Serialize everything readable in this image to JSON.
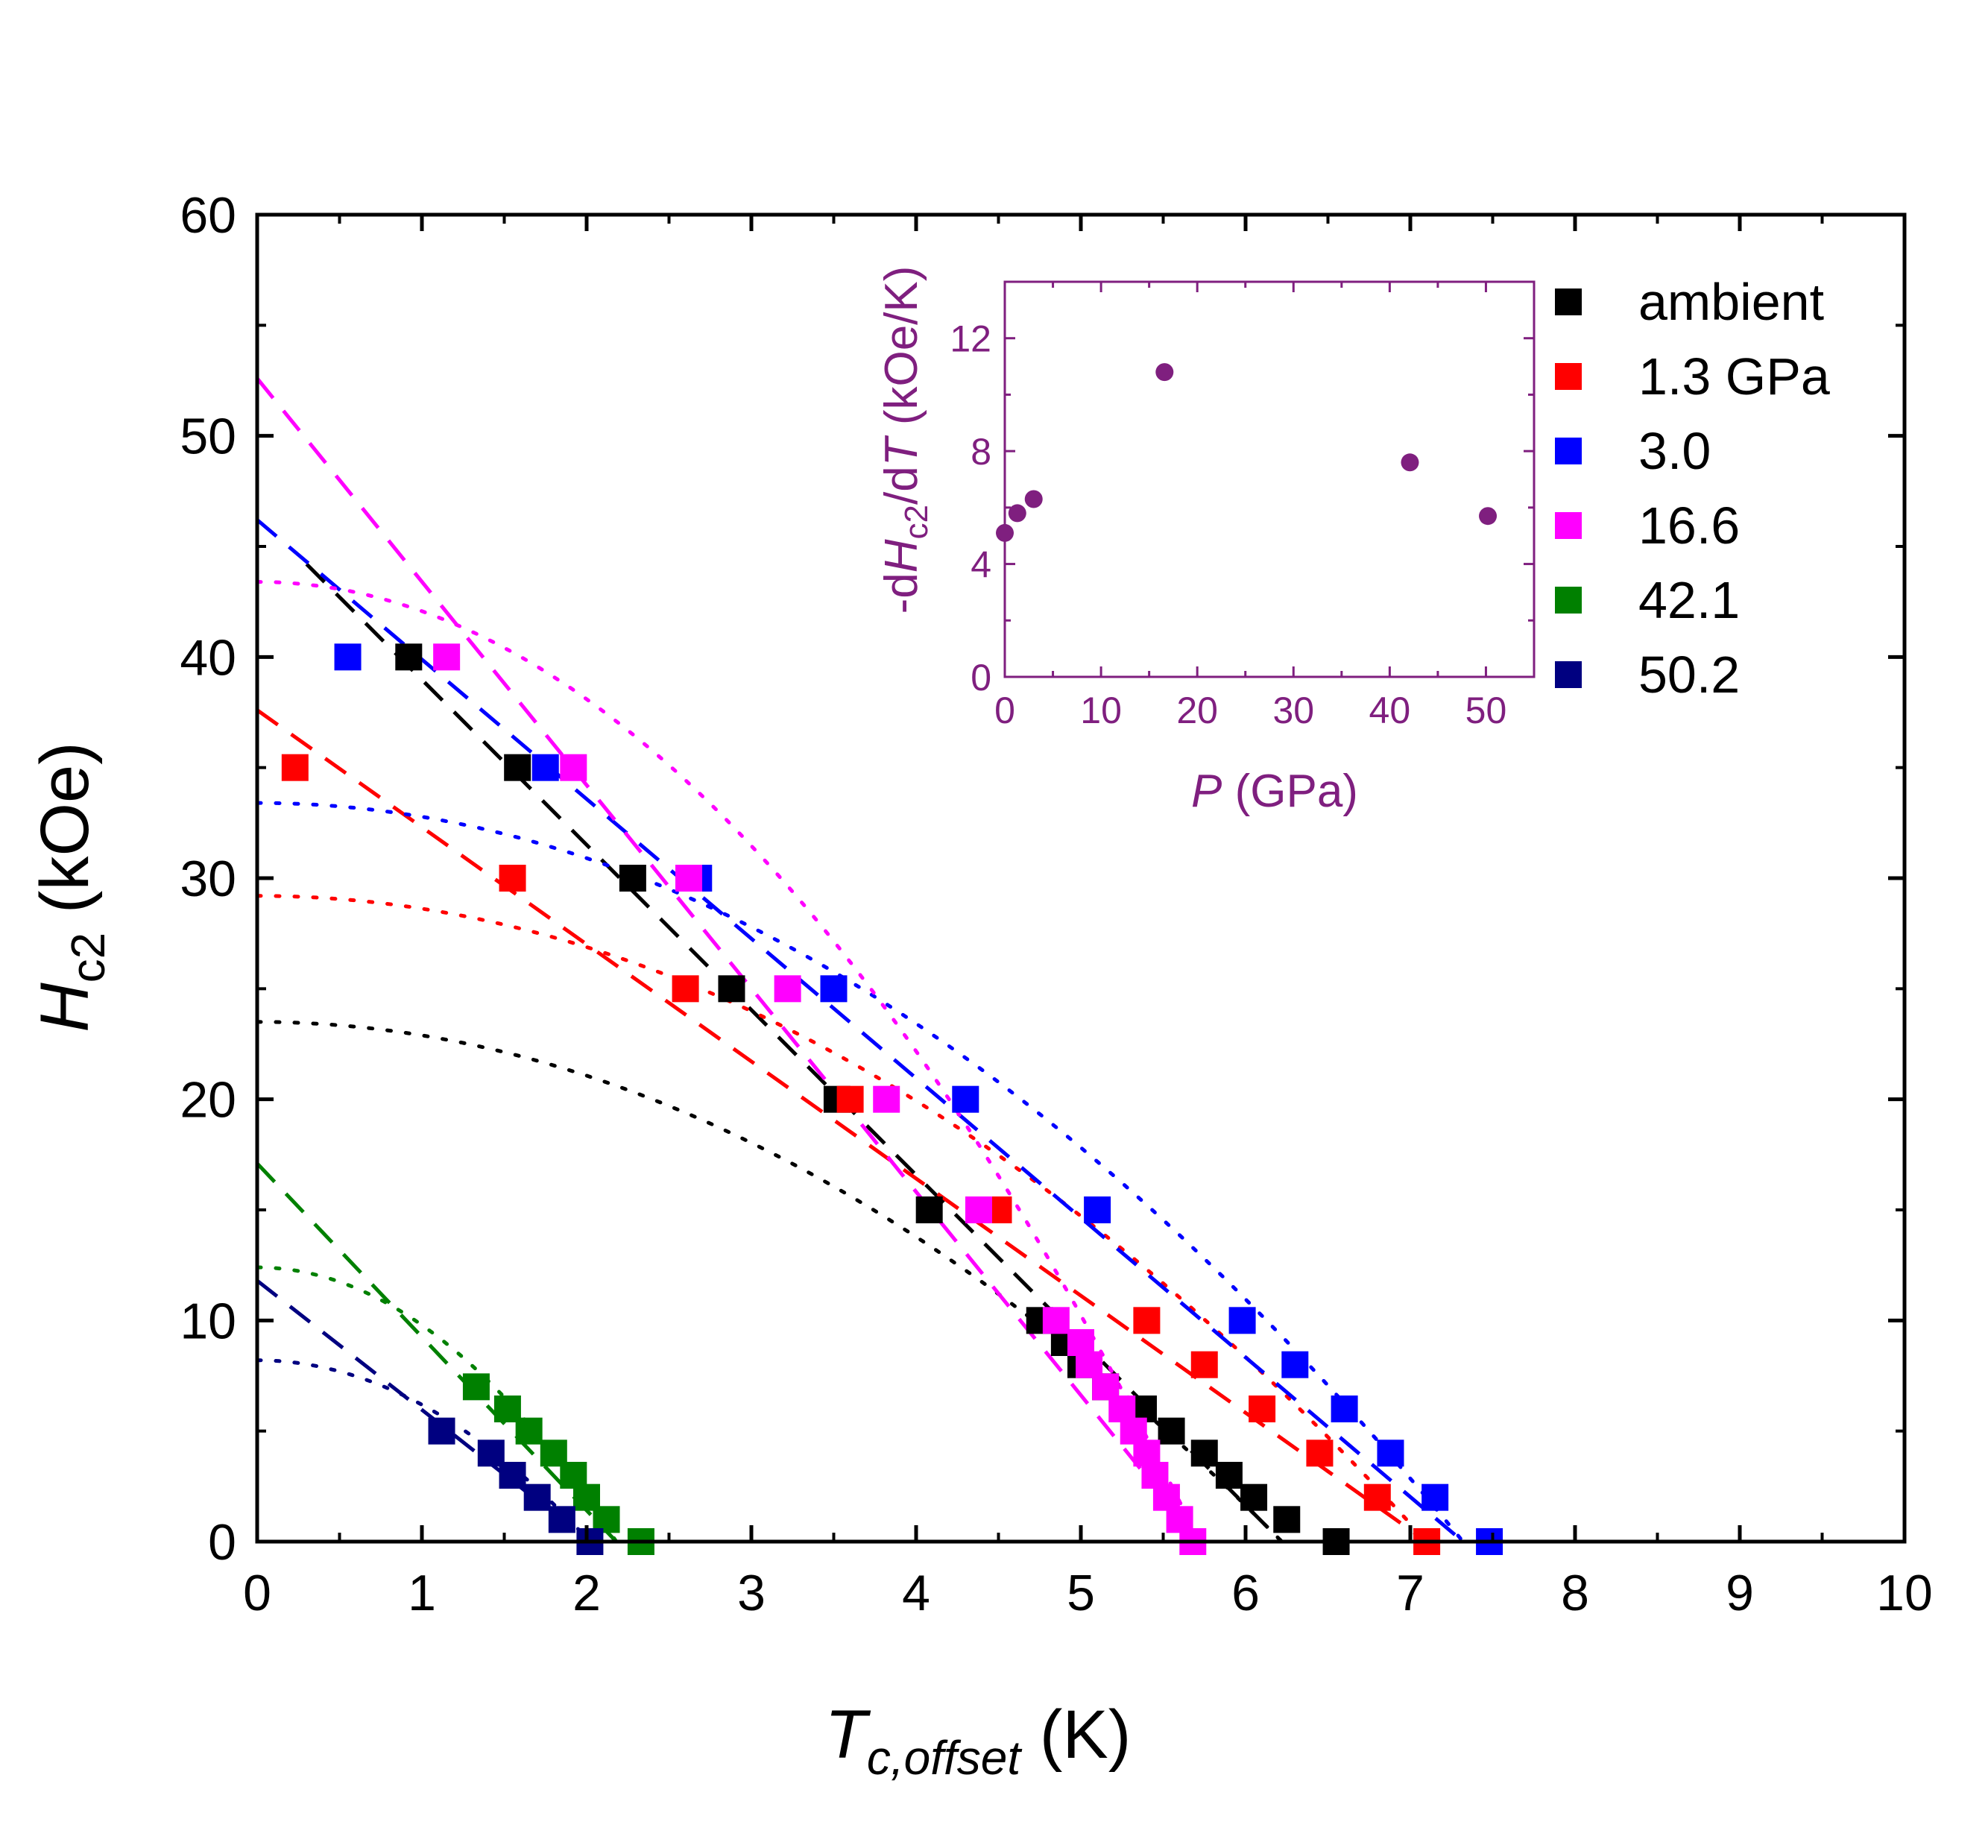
{
  "chart_data": {
    "type": "scatter",
    "xlabel": {
      "main": "T",
      "sub": "c,offset",
      "unit": " (K)"
    },
    "ylabel": {
      "main": "H",
      "sub": "c2",
      "unit": " (kOe)"
    },
    "xlim": [
      0,
      10
    ],
    "ylim": [
      0,
      60
    ],
    "x_ticks": [
      "0",
      "1",
      "2",
      "3",
      "4",
      "5",
      "6",
      "7",
      "8",
      "9",
      "10"
    ],
    "y_ticks": [
      "0",
      "10",
      "20",
      "30",
      "40",
      "50",
      "60"
    ],
    "legend_position": "top-right",
    "series": [
      {
        "name": "ambient",
        "color": "#000000",
        "points": [
          [
            0.92,
            40
          ],
          [
            1.58,
            35
          ],
          [
            2.28,
            30
          ],
          [
            2.88,
            25
          ],
          [
            3.52,
            20
          ],
          [
            4.08,
            15
          ],
          [
            4.75,
            10
          ],
          [
            4.9,
            9
          ],
          [
            5.0,
            8
          ],
          [
            5.15,
            7
          ],
          [
            5.38,
            6
          ],
          [
            5.55,
            5
          ],
          [
            5.75,
            4
          ],
          [
            5.9,
            3
          ],
          [
            6.05,
            2
          ],
          [
            6.25,
            1
          ],
          [
            6.55,
            0
          ]
        ],
        "fit_linear": [
          [
            0.3,
            44.2
          ],
          [
            6.22,
            0
          ]
        ],
        "fit_curve": {
          "h0": 23.5,
          "tc": 6.22
        }
      },
      {
        "name": "1.3 GPa",
        "color": "#ff0000",
        "points": [
          [
            0.23,
            35
          ],
          [
            1.55,
            30
          ],
          [
            2.6,
            25
          ],
          [
            3.6,
            20
          ],
          [
            4.5,
            15
          ],
          [
            5.4,
            10
          ],
          [
            5.75,
            8
          ],
          [
            6.1,
            6
          ],
          [
            6.45,
            4
          ],
          [
            6.8,
            2
          ],
          [
            7.1,
            0
          ]
        ],
        "fit_linear": [
          [
            0,
            37.6
          ],
          [
            7.1,
            0
          ]
        ],
        "fit_curve": {
          "h0": 29.2,
          "tc": 7.1
        }
      },
      {
        "name": "3.0",
        "color": "#0000ff",
        "points": [
          [
            0.55,
            40
          ],
          [
            1.75,
            35
          ],
          [
            2.68,
            30
          ],
          [
            3.5,
            25
          ],
          [
            4.3,
            20
          ],
          [
            5.1,
            15
          ],
          [
            5.98,
            10
          ],
          [
            6.3,
            8
          ],
          [
            6.6,
            6
          ],
          [
            6.88,
            4
          ],
          [
            7.15,
            2
          ],
          [
            7.48,
            0
          ]
        ],
        "fit_linear": [
          [
            0,
            46.2
          ],
          [
            7.32,
            0
          ]
        ],
        "fit_curve": {
          "h0": 33.4,
          "tc": 7.32
        }
      },
      {
        "name": "16.6",
        "color": "#ff00ff",
        "points": [
          [
            1.15,
            40
          ],
          [
            1.92,
            35
          ],
          [
            2.62,
            30
          ],
          [
            3.22,
            25
          ],
          [
            3.82,
            20
          ],
          [
            4.38,
            15
          ],
          [
            4.85,
            10
          ],
          [
            5.0,
            9
          ],
          [
            5.05,
            8
          ],
          [
            5.15,
            7
          ],
          [
            5.25,
            6
          ],
          [
            5.32,
            5
          ],
          [
            5.4,
            4
          ],
          [
            5.45,
            3
          ],
          [
            5.52,
            2
          ],
          [
            5.6,
            1
          ],
          [
            5.68,
            0
          ]
        ],
        "fit_linear": [
          [
            0,
            52.6
          ],
          [
            5.72,
            0
          ]
        ],
        "fit_curve": {
          "h0": 43.4,
          "tc": 5.72
        }
      },
      {
        "name": "42.1",
        "color": "#008000",
        "points": [
          [
            1.33,
            7
          ],
          [
            1.52,
            6
          ],
          [
            1.65,
            5
          ],
          [
            1.8,
            4
          ],
          [
            1.92,
            3
          ],
          [
            2.0,
            2
          ],
          [
            2.12,
            1
          ],
          [
            2.33,
            0
          ]
        ],
        "fit_linear": [
          [
            0,
            17.1
          ],
          [
            2.18,
            0
          ]
        ],
        "fit_curve": {
          "h0": 12.4,
          "tc": 2.18
        }
      },
      {
        "name": "50.2",
        "color": "#000080",
        "points": [
          [
            1.12,
            5
          ],
          [
            1.42,
            4
          ],
          [
            1.55,
            3
          ],
          [
            1.7,
            2
          ],
          [
            1.85,
            1
          ],
          [
            2.02,
            0
          ]
        ],
        "fit_linear": [
          [
            0,
            11.8
          ],
          [
            2.02,
            0
          ]
        ],
        "fit_curve": {
          "h0": 8.2,
          "tc": 2.02
        }
      }
    ],
    "inset": {
      "xlabel": {
        "main": "P",
        "unit": " (GPa)"
      },
      "ylabel": {
        "pre": "-d",
        "main": "H",
        "sub": "c2",
        "mid": "/d",
        "main2": "T",
        "unit": " (kOe/K)"
      },
      "xlim": [
        0,
        55
      ],
      "ylim": [
        0,
        14
      ],
      "x_ticks": [
        "0",
        "10",
        "20",
        "30",
        "40",
        "50"
      ],
      "y_ticks": [
        "0",
        "4",
        "8",
        "12"
      ],
      "color": "#7f1f7f",
      "points": [
        [
          0,
          5.1
        ],
        [
          1.3,
          5.8
        ],
        [
          3.0,
          6.3
        ],
        [
          16.6,
          10.8
        ],
        [
          42.1,
          7.6
        ],
        [
          50.2,
          5.7
        ]
      ]
    }
  }
}
